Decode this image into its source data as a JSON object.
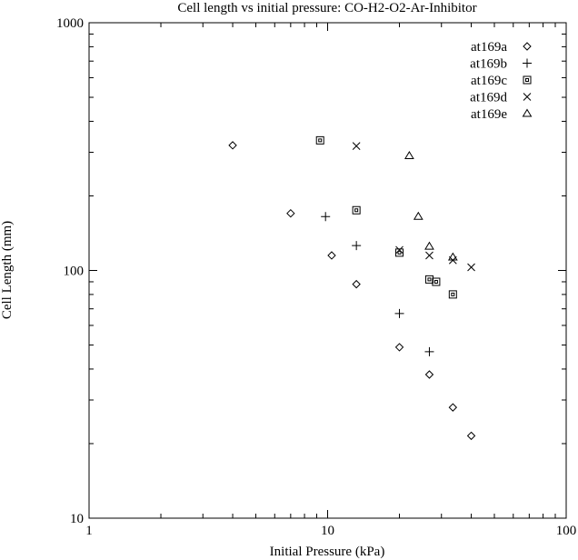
{
  "chart_data": {
    "type": "scatter",
    "title": "Cell length vs initial pressure: CO-H2-O2-Ar-Inhibitor",
    "xlabel": "Initial Pressure (kPa)",
    "ylabel": "Cell Length (mm)",
    "x_scale": "log",
    "y_scale": "log",
    "xlim": [
      1,
      100
    ],
    "ylim": [
      10,
      1000
    ],
    "x_ticks": [
      {
        "value": 1,
        "label": "1"
      },
      {
        "value": 10,
        "label": "10"
      },
      {
        "value": 100,
        "label": "100"
      }
    ],
    "y_ticks": [
      {
        "value": 10,
        "label": "10"
      },
      {
        "value": 100,
        "label": "100"
      },
      {
        "value": 1000,
        "label": "1000"
      }
    ],
    "grid": false,
    "legend_position": "top-right",
    "series": [
      {
        "name": "at169a",
        "marker": "diamond",
        "points": [
          [
            4,
            320
          ],
          [
            7,
            170
          ],
          [
            10.4,
            115
          ],
          [
            13.2,
            88
          ],
          [
            20,
            49
          ],
          [
            26.7,
            38
          ],
          [
            33.5,
            28
          ],
          [
            40,
            21.5
          ]
        ]
      },
      {
        "name": "at169b",
        "marker": "plus",
        "points": [
          [
            9.8,
            165
          ],
          [
            13.2,
            126
          ],
          [
            20,
            67
          ],
          [
            26.7,
            47
          ]
        ]
      },
      {
        "name": "at169c",
        "marker": "square",
        "points": [
          [
            9.3,
            335
          ],
          [
            13.2,
            175
          ],
          [
            20,
            118
          ],
          [
            26.7,
            92
          ],
          [
            28.5,
            90
          ],
          [
            33.5,
            80
          ]
        ]
      },
      {
        "name": "at169d",
        "marker": "cross",
        "points": [
          [
            13.2,
            318
          ],
          [
            20,
            121
          ],
          [
            26.7,
            115
          ],
          [
            33.5,
            110
          ],
          [
            40,
            103
          ]
        ]
      },
      {
        "name": "at169e",
        "marker": "triangle",
        "points": [
          [
            22,
            290
          ],
          [
            24,
            165
          ],
          [
            26.7,
            125
          ],
          [
            33.5,
            113
          ]
        ]
      }
    ]
  }
}
